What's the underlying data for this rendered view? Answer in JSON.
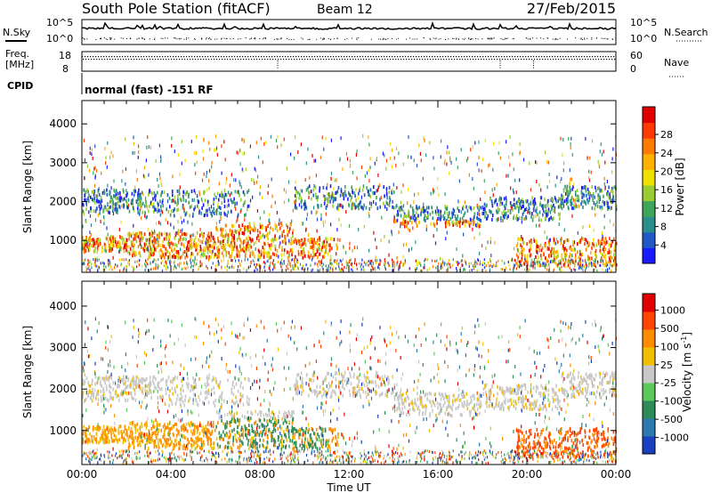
{
  "header": {
    "title": "South Pole Station (fitACF)",
    "beam": "Beam 12",
    "date": "27/Feb/2015"
  },
  "summary": {
    "nsky_label": "N.Sky",
    "nsearch_label": "N.Search",
    "freq_label": "Freq.",
    "freq_unit": "[MHz]",
    "nave_label": "Nave",
    "cpid_label": "CPID",
    "cpid_value": "normal (fast) -151 RF",
    "noise_ticks": [
      "10^5",
      "10^0"
    ],
    "freq_ticks": [
      "18",
      "8"
    ],
    "nave_ticks": [
      "60",
      "0"
    ]
  },
  "chart_data": [
    {
      "type": "heatmap",
      "name": "Power",
      "ylabel": "Slant Range [km]",
      "yticks": [
        1000,
        2000,
        3000,
        4000
      ],
      "ylim": [
        180,
        4600
      ],
      "xlabel": "Time UT",
      "xticks": [
        "00:00",
        "04:00",
        "08:00",
        "12:00",
        "16:00",
        "20:00",
        "00:00"
      ],
      "xlim_hours": [
        0,
        24
      ],
      "colorbar": {
        "label": "Power [dB]",
        "ticks": [
          "4",
          "8",
          "12",
          "16",
          "20",
          "24",
          "28"
        ],
        "colors": [
          "#1a1aff",
          "#2257c8",
          "#2a8f8a",
          "#3ea65a",
          "#9acd32",
          "#f0e000",
          "#ffb000",
          "#ff7a00",
          "#ff3a00",
          "#e00000"
        ]
      }
    },
    {
      "type": "heatmap",
      "name": "Velocity",
      "ylabel": "Slant Range [km]",
      "yticks": [
        1000,
        2000,
        3000,
        4000
      ],
      "ylim": [
        180,
        4600
      ],
      "xlabel": "Time UT",
      "xticks": [
        "00:00",
        "04:00",
        "08:00",
        "12:00",
        "16:00",
        "20:00",
        "00:00"
      ],
      "xlim_hours": [
        0,
        24
      ],
      "colorbar": {
        "label": "Velocity [m s",
        "label_sup": "-1",
        "label_end": "]",
        "ticks": [
          "1000",
          "500",
          "100",
          "25",
          "-25",
          "-100",
          "-500",
          "-1000"
        ],
        "colors": [
          "#1a3fbf",
          "#2a7ab0",
          "#2e8b57",
          "#5ac85a",
          "#c8c8c8",
          "#f0c000",
          "#ff8c00",
          "#ff4500",
          "#e00000"
        ]
      }
    }
  ]
}
